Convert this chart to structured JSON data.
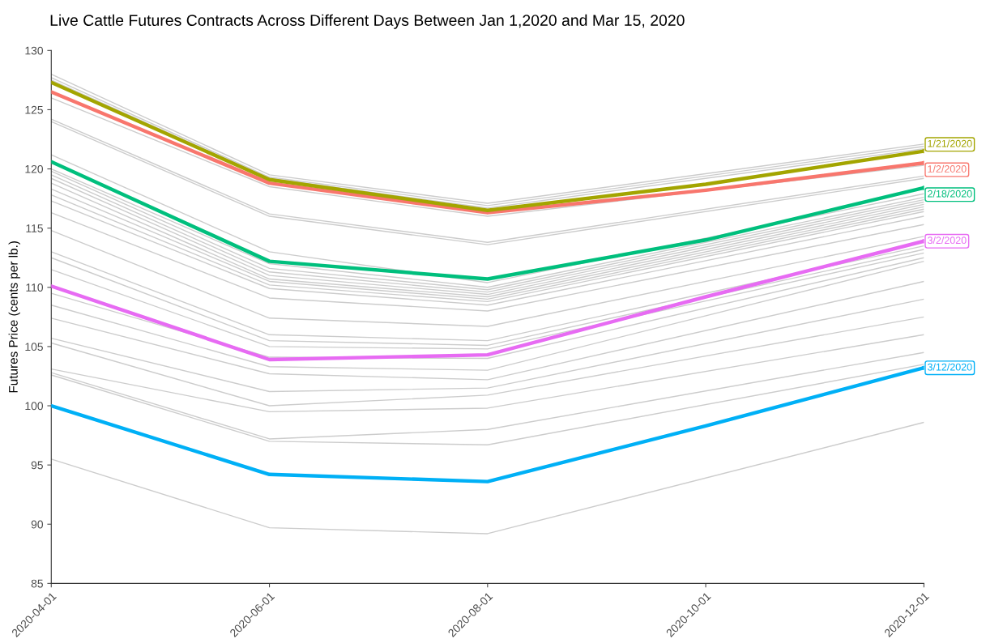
{
  "chart_data": {
    "type": "line",
    "title": "Live Cattle Futures Contracts Across Different Days Between Jan 1,2020 and Mar 15, 2020",
    "ylabel": "Futures Price (cents per lb.)",
    "xlim": [
      "2020-04-01",
      "2020-12-01"
    ],
    "xticks": [
      "2020-04-01",
      "2020-06-01",
      "2020-08-01",
      "2020-10-01",
      "2020-12-01"
    ],
    "ylim": [
      85,
      130
    ],
    "yticks": [
      85,
      90,
      95,
      100,
      105,
      110,
      115,
      120,
      125,
      130
    ],
    "series": [
      {
        "color": "#cccccc",
        "x": [
          "2020-04-01",
          "2020-06-01",
          "2020-08-01",
          "2020-12-01"
        ],
        "values": [
          128.0,
          119.5,
          117.1,
          122.1
        ]
      },
      {
        "color": "#cccccc",
        "x": [
          "2020-04-01",
          "2020-06-01",
          "2020-08-01",
          "2020-12-01"
        ],
        "values": [
          127.7,
          119.3,
          116.9,
          121.9
        ]
      },
      {
        "color": "#cccccc",
        "x": [
          "2020-04-01",
          "2020-06-01",
          "2020-08-01",
          "2020-12-01"
        ],
        "values": [
          127.5,
          119.2,
          116.7,
          121.7
        ]
      },
      {
        "color": "#cccccc",
        "x": [
          "2020-04-01",
          "2020-06-01",
          "2020-08-01",
          "2020-12-01"
        ],
        "values": [
          126.0,
          118.5,
          116.0,
          120.3
        ]
      },
      {
        "color": "#cccccc",
        "x": [
          "2020-04-01",
          "2020-06-01",
          "2020-08-01",
          "2020-12-01"
        ],
        "values": [
          124.2,
          116.2,
          113.8,
          119.4
        ]
      },
      {
        "color": "#cccccc",
        "x": [
          "2020-04-01",
          "2020-06-01",
          "2020-08-01",
          "2020-12-01"
        ],
        "values": [
          124.0,
          116.0,
          113.6,
          119.2
        ]
      },
      {
        "color": "#cccccc",
        "x": [
          "2020-04-01",
          "2020-06-01",
          "2020-08-01",
          "2020-12-01"
        ],
        "values": [
          121.2,
          113.0,
          110.4,
          117.9
        ]
      },
      {
        "color": "#cccccc",
        "x": [
          "2020-04-01",
          "2020-06-01",
          "2020-08-01",
          "2020-12-01"
        ],
        "values": [
          120.0,
          112.0,
          110.0,
          117.6
        ]
      },
      {
        "color": "#cccccc",
        "x": [
          "2020-04-01",
          "2020-06-01",
          "2020-08-01",
          "2020-12-01"
        ],
        "values": [
          119.8,
          111.6,
          109.8,
          117.4
        ]
      },
      {
        "color": "#cccccc",
        "x": [
          "2020-04-01",
          "2020-06-01",
          "2020-08-01",
          "2020-12-01"
        ],
        "values": [
          119.5,
          111.3,
          109.6,
          117.2
        ]
      },
      {
        "color": "#cccccc",
        "x": [
          "2020-04-01",
          "2020-06-01",
          "2020-08-01",
          "2020-12-01"
        ],
        "values": [
          119.2,
          111.0,
          109.4,
          117.0
        ]
      },
      {
        "color": "#cccccc",
        "x": [
          "2020-04-01",
          "2020-06-01",
          "2020-08-01",
          "2020-12-01"
        ],
        "values": [
          118.8,
          110.7,
          109.2,
          116.8
        ]
      },
      {
        "color": "#cccccc",
        "x": [
          "2020-04-01",
          "2020-06-01",
          "2020-08-01",
          "2020-12-01"
        ],
        "values": [
          118.3,
          110.5,
          109.0,
          116.6
        ]
      },
      {
        "color": "#cccccc",
        "x": [
          "2020-04-01",
          "2020-06-01",
          "2020-08-01",
          "2020-12-01"
        ],
        "values": [
          117.8,
          110.2,
          108.8,
          116.4
        ]
      },
      {
        "color": "#cccccc",
        "x": [
          "2020-04-01",
          "2020-06-01",
          "2020-08-01",
          "2020-12-01"
        ],
        "values": [
          117.3,
          109.9,
          108.5,
          116.0
        ]
      },
      {
        "color": "#cccccc",
        "x": [
          "2020-04-01",
          "2020-06-01",
          "2020-08-01",
          "2020-12-01"
        ],
        "values": [
          116.3,
          109.1,
          108.0,
          115.3
        ]
      },
      {
        "color": "#cccccc",
        "x": [
          "2020-04-01",
          "2020-06-01",
          "2020-08-01",
          "2020-12-01"
        ],
        "values": [
          114.8,
          107.4,
          106.7,
          114.3
        ]
      },
      {
        "color": "#cccccc",
        "x": [
          "2020-04-01",
          "2020-06-01",
          "2020-08-01",
          "2020-12-01"
        ],
        "values": [
          113.0,
          106.0,
          105.5,
          113.5
        ]
      },
      {
        "color": "#cccccc",
        "x": [
          "2020-04-01",
          "2020-06-01",
          "2020-08-01",
          "2020-12-01"
        ],
        "values": [
          112.5,
          105.5,
          105.1,
          113.2
        ]
      },
      {
        "color": "#cccccc",
        "x": [
          "2020-04-01",
          "2020-06-01",
          "2020-08-01",
          "2020-12-01"
        ],
        "values": [
          111.5,
          105.0,
          104.8,
          112.9
        ]
      },
      {
        "color": "#cccccc",
        "x": [
          "2020-04-01",
          "2020-06-01",
          "2020-08-01",
          "2020-12-01"
        ],
        "values": [
          109.5,
          104.1,
          104.0,
          112.5
        ]
      },
      {
        "color": "#cccccc",
        "x": [
          "2020-04-01",
          "2020-06-01",
          "2020-08-01",
          "2020-12-01"
        ],
        "values": [
          108.5,
          103.3,
          103.0,
          112.2
        ]
      },
      {
        "color": "#cccccc",
        "x": [
          "2020-04-01",
          "2020-06-01",
          "2020-08-01",
          "2020-12-01"
        ],
        "values": [
          107.4,
          102.7,
          102.2,
          110.5
        ]
      },
      {
        "color": "#cccccc",
        "x": [
          "2020-04-01",
          "2020-06-01",
          "2020-08-01",
          "2020-12-01"
        ],
        "values": [
          105.7,
          101.2,
          101.5,
          109.0
        ]
      },
      {
        "color": "#cccccc",
        "x": [
          "2020-04-01",
          "2020-06-01",
          "2020-08-01",
          "2020-12-01"
        ],
        "values": [
          105.3,
          100.0,
          100.9,
          107.5
        ]
      },
      {
        "color": "#cccccc",
        "x": [
          "2020-04-01",
          "2020-06-01",
          "2020-08-01",
          "2020-12-01"
        ],
        "values": [
          103.1,
          99.5,
          99.8,
          106.0
        ]
      },
      {
        "color": "#cccccc",
        "x": [
          "2020-04-01",
          "2020-06-01",
          "2020-08-01",
          "2020-12-01"
        ],
        "values": [
          102.8,
          97.2,
          98.0,
          104.5
        ]
      },
      {
        "color": "#cccccc",
        "x": [
          "2020-04-01",
          "2020-06-01",
          "2020-08-01",
          "2020-12-01"
        ],
        "values": [
          102.6,
          97.0,
          96.7,
          103.5
        ]
      },
      {
        "color": "#cccccc",
        "x": [
          "2020-04-01",
          "2020-06-01",
          "2020-08-01",
          "2020-12-01"
        ],
        "values": [
          95.5,
          89.7,
          89.2,
          98.6
        ]
      },
      {
        "name": "1/2/2020",
        "color": "#f8766d",
        "x": [
          "2020-04-01",
          "2020-06-01",
          "2020-08-01",
          "2020-10-01",
          "2020-12-01"
        ],
        "values": [
          126.5,
          118.8,
          116.3,
          118.2,
          120.5
        ]
      },
      {
        "name": "1/21/2020",
        "color": "#a3a500",
        "x": [
          "2020-04-01",
          "2020-06-01",
          "2020-08-01",
          "2020-10-01",
          "2020-12-01"
        ],
        "values": [
          127.3,
          119.1,
          116.5,
          118.7,
          121.5
        ]
      },
      {
        "name": "2/18/2020",
        "color": "#00bf7d",
        "x": [
          "2020-04-01",
          "2020-06-01",
          "2020-08-01",
          "2020-10-01",
          "2020-12-01"
        ],
        "values": [
          120.6,
          112.2,
          110.7,
          114.0,
          118.4
        ]
      },
      {
        "name": "3/2/2020",
        "color": "#e76bf3",
        "x": [
          "2020-04-01",
          "2020-06-01",
          "2020-08-01",
          "2020-10-01",
          "2020-12-01"
        ],
        "values": [
          110.1,
          103.9,
          104.3,
          109.2,
          113.9
        ]
      },
      {
        "name": "3/12/2020",
        "color": "#00b0f6",
        "x": [
          "2020-04-01",
          "2020-06-01",
          "2020-08-01",
          "2020-10-01",
          "2020-12-01"
        ],
        "values": [
          100.0,
          94.2,
          93.6,
          98.3,
          103.2
        ]
      }
    ]
  }
}
